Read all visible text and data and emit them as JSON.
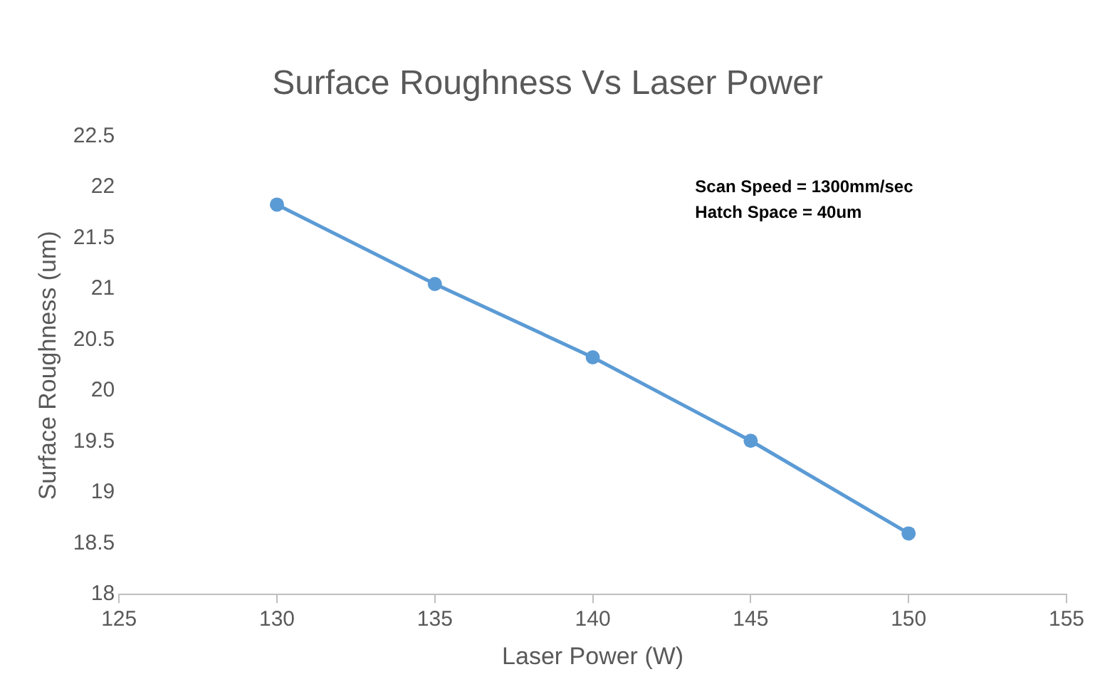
{
  "chart_data": {
    "type": "line",
    "title": "Surface Roughness Vs Laser Power",
    "xlabel": "Laser Power (W)",
    "ylabel": "Surface Roughness (um)",
    "annotations": [
      "Scan Speed = 1300mm/sec",
      "Hatch Space = 40um"
    ],
    "x": [
      130,
      135,
      140,
      145,
      150
    ],
    "series": [
      {
        "color": "#5b9bd5",
        "values": [
          21.83,
          21.05,
          20.33,
          19.51,
          18.6
        ]
      }
    ],
    "xlim": [
      125,
      155
    ],
    "xticks": [
      125,
      130,
      135,
      140,
      145,
      150,
      155
    ],
    "ylim": [
      18,
      22.5
    ],
    "yticks": [
      18,
      18.5,
      19,
      19.5,
      20,
      20.5,
      21,
      21.5,
      22,
      22.5
    ],
    "grid": false,
    "legend": false,
    "marker": "circle",
    "line_style": "solid"
  }
}
